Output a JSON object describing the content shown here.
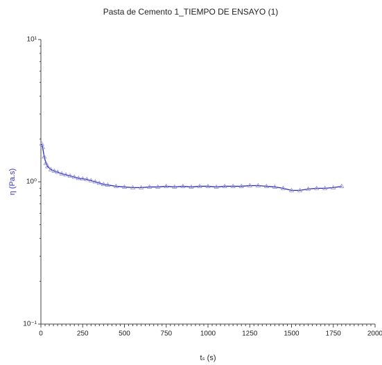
{
  "chart_data": {
    "type": "line",
    "title": "Pasta de Cemento 1_TIEMPO DE ENSAYO (1)",
    "x_label": "tₛ (s)",
    "y_label": "η (Pa.s)",
    "x": [
      5,
      10,
      20,
      30,
      40,
      60,
      80,
      100,
      125,
      150,
      175,
      200,
      225,
      250,
      275,
      300,
      325,
      350,
      375,
      400,
      450,
      500,
      550,
      600,
      650,
      700,
      750,
      800,
      850,
      900,
      950,
      1000,
      1050,
      1100,
      1150,
      1200,
      1250,
      1300,
      1350,
      1400,
      1450,
      1500,
      1550,
      1600,
      1650,
      1700,
      1750,
      1800
    ],
    "values": [
      1.85,
      1.75,
      1.5,
      1.35,
      1.28,
      1.22,
      1.19,
      1.17,
      1.14,
      1.12,
      1.1,
      1.08,
      1.06,
      1.05,
      1.04,
      1.02,
      1.0,
      0.98,
      0.96,
      0.95,
      0.93,
      0.92,
      0.91,
      0.91,
      0.92,
      0.92,
      0.93,
      0.92,
      0.93,
      0.92,
      0.93,
      0.93,
      0.92,
      0.93,
      0.93,
      0.93,
      0.94,
      0.94,
      0.93,
      0.92,
      0.9,
      0.87,
      0.87,
      0.89,
      0.9,
      0.9,
      0.91,
      0.93
    ],
    "color": "#2b2bb0",
    "marker_color": "#8f8fe0",
    "xlim": [
      0,
      2000
    ],
    "xticks": [
      0,
      250,
      500,
      750,
      1000,
      1250,
      1500,
      1750,
      2000
    ],
    "ylim": [
      0.1,
      10
    ],
    "log_y": true,
    "yticks": [
      {
        "value": 10,
        "label": "10¹"
      },
      {
        "value": 1,
        "label": "10⁰"
      },
      {
        "value": 0.1,
        "label": "10⁻¹"
      }
    ]
  }
}
